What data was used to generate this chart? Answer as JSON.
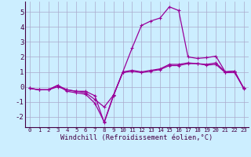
{
  "background_color": "#cceeff",
  "grid_color": "#aaaacc",
  "line_color": "#990099",
  "xlabel": "Windchill (Refroidissement éolien,°C)",
  "xlim": [
    -0.5,
    23.5
  ],
  "ylim": [
    -2.7,
    5.7
  ],
  "yticks": [
    -2,
    -1,
    0,
    1,
    2,
    3,
    4,
    5
  ],
  "xticks": [
    0,
    1,
    2,
    3,
    4,
    5,
    6,
    7,
    8,
    9,
    10,
    11,
    12,
    13,
    14,
    15,
    16,
    17,
    18,
    19,
    20,
    21,
    22,
    23
  ],
  "series": [
    [
      -0.1,
      -0.2,
      -0.2,
      0.1,
      -0.2,
      -0.3,
      -0.3,
      -0.6,
      -2.4,
      -0.6,
      1.0,
      1.1,
      1.0,
      1.1,
      1.2,
      1.5,
      1.5,
      1.6,
      1.55,
      1.5,
      1.6,
      1.0,
      1.05,
      -0.1
    ],
    [
      -0.1,
      -0.2,
      -0.2,
      0.0,
      -0.2,
      -0.3,
      -0.4,
      -0.85,
      -1.35,
      -0.55,
      0.95,
      1.05,
      0.95,
      1.05,
      1.15,
      1.42,
      1.42,
      1.55,
      1.55,
      1.45,
      1.5,
      0.95,
      0.95,
      -0.1
    ],
    [
      -0.1,
      -0.2,
      -0.2,
      0.1,
      -0.3,
      -0.4,
      -0.5,
      -1.1,
      -2.35,
      -0.55,
      1.0,
      2.6,
      4.1,
      4.4,
      4.6,
      5.35,
      5.1,
      2.0,
      1.9,
      1.95,
      2.05,
      1.0,
      1.05,
      -0.15
    ]
  ]
}
